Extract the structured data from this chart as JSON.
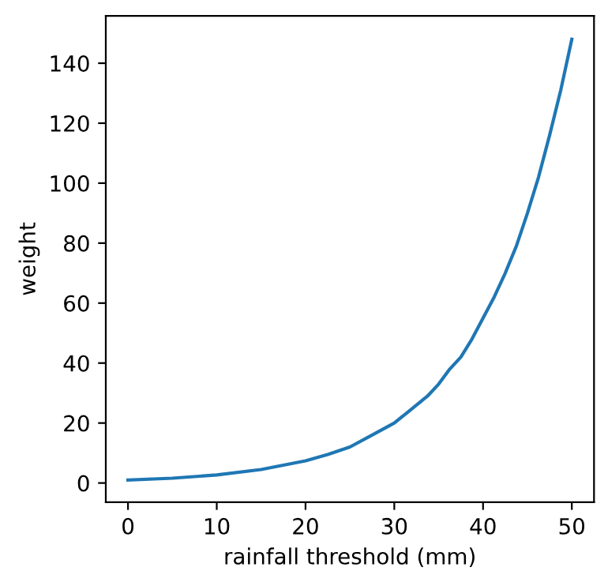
{
  "chart_data": {
    "type": "line",
    "xlabel": "rainfall threshold (mm)",
    "ylabel": "weight",
    "x": [
      0,
      5,
      10,
      15,
      20,
      22.5,
      25,
      27.5,
      30,
      31.25,
      32.5,
      33.75,
      35,
      36.25,
      37.5,
      38.75,
      40,
      41.25,
      42.5,
      43.75,
      45,
      46.25,
      47.5,
      48.75,
      50
    ],
    "series": [
      {
        "color": "#1f77b4",
        "values": [
          1,
          1.6,
          2.7,
          4.5,
          7.4,
          9.5,
          12,
          16,
          20,
          23,
          26,
          29,
          33,
          38,
          42,
          48,
          55,
          62,
          70,
          79,
          90,
          102,
          116,
          131,
          148
        ]
      }
    ],
    "xlim": [
      -2.5,
      52.5
    ],
    "ylim": [
      -6.4,
      155.8
    ],
    "xticks": [
      0,
      10,
      20,
      30,
      40,
      50
    ],
    "yticks": [
      0,
      20,
      40,
      60,
      80,
      100,
      120,
      140
    ],
    "marker": "none",
    "line_style": "solid"
  }
}
